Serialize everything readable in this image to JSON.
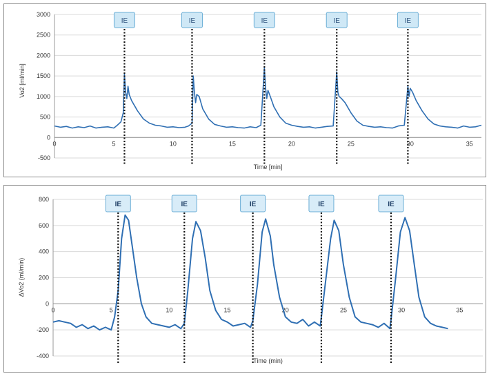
{
  "chart_data": [
    {
      "type": "line",
      "ylabel": "Vo2 [ml/min]",
      "xlabel": "Time [min]",
      "xlim": [
        0,
        36
      ],
      "ylim": [
        -500,
        3000
      ],
      "xticks": [
        0,
        5,
        10,
        15,
        20,
        25,
        30,
        35
      ],
      "yticks": [
        -500,
        0,
        500,
        1000,
        1500,
        2000,
        2500,
        3000
      ],
      "grid": "horizontal",
      "line_color": "#2f6fb3",
      "markers": {
        "label": "IE",
        "x": [
          5.9,
          11.6,
          17.7,
          23.8,
          29.8
        ]
      },
      "series": [
        {
          "x": [
            0,
            0.5,
            1,
            1.5,
            2,
            2.5,
            3,
            3.5,
            4,
            4.5,
            5,
            5.3,
            5.6,
            5.8,
            5.9,
            6.0,
            6.1,
            6.2,
            6.3,
            6.5,
            7,
            7.5,
            8,
            8.5,
            9,
            9.5,
            10,
            10.5,
            11,
            11.3,
            11.6,
            11.7,
            11.8,
            11.9,
            12.0,
            12.2,
            12.5,
            13,
            13.5,
            14,
            14.5,
            15,
            15.5,
            16,
            16.5,
            17,
            17.4,
            17.7,
            17.8,
            17.9,
            18.0,
            18.2,
            18.5,
            19,
            19.5,
            20,
            20.5,
            21,
            21.5,
            22,
            22.5,
            23,
            23.5,
            23.8,
            23.9,
            24.0,
            24.2,
            24.5,
            25,
            25.5,
            26,
            26.5,
            27,
            27.5,
            28,
            28.5,
            29,
            29.5,
            29.8,
            29.9,
            30.0,
            30.2,
            30.5,
            31,
            31.5,
            32,
            32.5,
            33,
            33.5,
            34,
            34.5,
            35,
            35.5,
            36
          ],
          "y": [
            280,
            250,
            270,
            230,
            260,
            240,
            280,
            230,
            250,
            260,
            230,
            300,
            380,
            600,
            1550,
            1100,
            950,
            1250,
            1050,
            900,
            650,
            450,
            350,
            300,
            280,
            250,
            260,
            240,
            250,
            280,
            350,
            1500,
            1100,
            850,
            1050,
            1000,
            700,
            450,
            320,
            280,
            250,
            260,
            240,
            230,
            260,
            240,
            300,
            1700,
            1200,
            950,
            1150,
            1000,
            750,
            500,
            350,
            300,
            270,
            250,
            260,
            230,
            250,
            270,
            280,
            1600,
            1100,
            1000,
            950,
            850,
            600,
            400,
            300,
            270,
            250,
            260,
            240,
            230,
            280,
            300,
            1250,
            1000,
            1200,
            1100,
            900,
            650,
            450,
            330,
            280,
            260,
            250,
            230,
            280,
            250,
            260,
            300
          ]
        }
      ]
    },
    {
      "type": "line",
      "ylabel": "ΔVo2 (ml/min)",
      "xlabel": "Time (min)",
      "xlim": [
        0,
        37
      ],
      "ylim": [
        -400,
        800
      ],
      "xticks": [
        0,
        5,
        10,
        15,
        20,
        25,
        30,
        35
      ],
      "yticks": [
        -400,
        -200,
        0,
        200,
        400,
        600,
        800
      ],
      "grid": "horizontal",
      "line_color": "#2f6fb3",
      "markers": {
        "label": "IE",
        "x": [
          5.6,
          11.3,
          17.2,
          23.1,
          29.1
        ]
      },
      "series": [
        {
          "x": [
            0,
            0.5,
            1,
            1.5,
            2,
            2.5,
            3,
            3.5,
            4,
            4.5,
            5,
            5.3,
            5.6,
            5.9,
            6.2,
            6.5,
            6.8,
            7.2,
            7.6,
            8,
            8.5,
            9,
            9.5,
            10,
            10.5,
            11,
            11.3,
            11.6,
            12,
            12.3,
            12.7,
            13.1,
            13.5,
            14,
            14.5,
            15,
            15.5,
            16,
            16.5,
            17,
            17.2,
            17.6,
            18,
            18.3,
            18.7,
            19,
            19.5,
            20,
            20.5,
            21,
            21.5,
            22,
            22.5,
            23,
            23.1,
            23.5,
            23.9,
            24.2,
            24.6,
            25,
            25.5,
            26,
            26.5,
            27,
            27.5,
            28,
            28.5,
            29,
            29.1,
            29.5,
            29.9,
            30.3,
            30.7,
            31.1,
            31.5,
            32,
            32.5,
            33,
            33.5,
            34
          ],
          "y": [
            -140,
            -130,
            -140,
            -150,
            -180,
            -160,
            -190,
            -170,
            -200,
            -180,
            -200,
            -100,
            100,
            500,
            680,
            640,
            450,
            200,
            0,
            -100,
            -150,
            -160,
            -170,
            -180,
            -160,
            -190,
            -150,
            100,
            500,
            630,
            560,
            350,
            100,
            -50,
            -120,
            -140,
            -170,
            -160,
            -150,
            -180,
            -130,
            150,
            550,
            650,
            520,
            300,
            50,
            -100,
            -140,
            -150,
            -120,
            -170,
            -140,
            -170,
            -100,
            200,
            500,
            640,
            560,
            300,
            50,
            -100,
            -140,
            -150,
            -160,
            -180,
            -150,
            -190,
            -120,
            200,
            550,
            660,
            560,
            300,
            50,
            -100,
            -150,
            -170,
            -180,
            -190
          ]
        }
      ]
    }
  ]
}
